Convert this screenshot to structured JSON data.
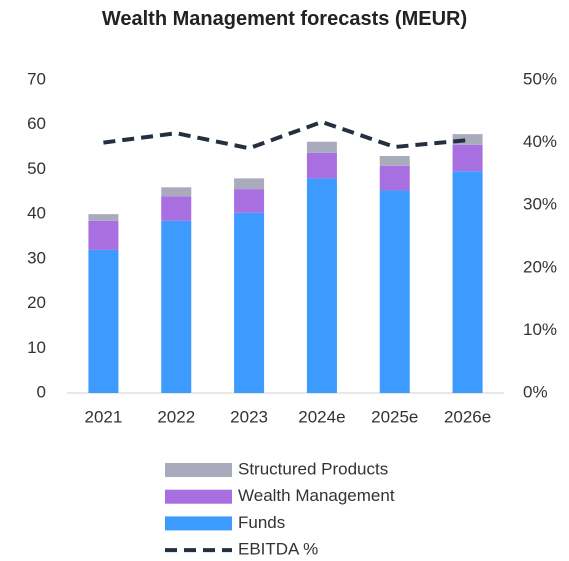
{
  "chart_data": {
    "type": "bar",
    "stacked": true,
    "title": "Wealth Management forecasts (MEUR)",
    "categories": [
      "2021",
      "2022",
      "2023",
      "2024e",
      "2025e",
      "2026e"
    ],
    "series": [
      {
        "name": "Funds",
        "color": "#3d9bff",
        "values": [
          32,
          38.5,
          40.3,
          48,
          45.3,
          49.6
        ]
      },
      {
        "name": "Wealth Management",
        "color": "#a86fe0",
        "values": [
          6.5,
          5.5,
          5.3,
          5.7,
          5.5,
          5.9
        ]
      },
      {
        "name": "Structured Products",
        "color": "#a9abbd",
        "values": [
          1.5,
          2,
          2.4,
          2.5,
          2.2,
          2.4
        ]
      },
      {
        "name": "EBITDA %",
        "color": "#243040",
        "type": "line",
        "dashed": true,
        "axis": "y2",
        "values": [
          40,
          41.5,
          39.1,
          43.3,
          39.3,
          40.4
        ]
      }
    ],
    "ylim": [
      0,
      70
    ],
    "yticks": [
      0,
      10,
      20,
      30,
      40,
      50,
      60,
      70
    ],
    "y2lim": [
      0,
      50
    ],
    "y2ticks": [
      {
        "value": 0,
        "label": "0%"
      },
      {
        "value": 10,
        "label": "10%"
      },
      {
        "value": 20,
        "label": "20%"
      },
      {
        "value": 30,
        "label": "30%"
      },
      {
        "value": 40,
        "label": "40%"
      },
      {
        "value": 50,
        "label": "50%"
      }
    ],
    "grid": false,
    "legend": "bottom"
  }
}
